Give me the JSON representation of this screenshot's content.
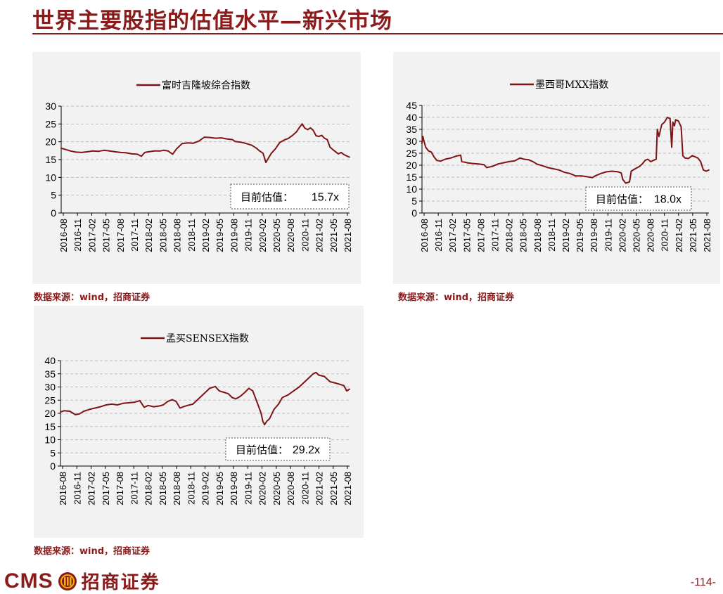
{
  "page": {
    "title": "世界主要股指的估值水平—新兴市场",
    "page_number": "-114-",
    "brand_en": "CMS",
    "brand_cn": "招商证券",
    "source_text": "数据来源：wind，招商证券"
  },
  "colors": {
    "brand": "#8b1a1a",
    "series": "#7f1416",
    "panel_bg": "#f2f2f2",
    "grid": "#bfbfbf"
  },
  "chart_data": [
    {
      "id": "ftse-malaysia",
      "type": "line",
      "legend": "富时吉隆坡综合指数",
      "annotation_label": "目前估值：",
      "annotation_value": "15.7x",
      "ylim": [
        0,
        30
      ],
      "yticks": [
        0,
        5,
        10,
        15,
        20,
        25,
        30
      ],
      "xlim": [
        2016.583,
        2021.75
      ],
      "xticks": [
        "2016-08",
        "2016-11",
        "2017-02",
        "2017-05",
        "2017-08",
        "2017-11",
        "2018-02",
        "2018-05",
        "2018-08",
        "2018-11",
        "2019-02",
        "2019-05",
        "2019-08",
        "2019-11",
        "2020-02",
        "2020-05",
        "2020-08",
        "2020-11",
        "2021-02",
        "2021-05",
        "2021-08"
      ],
      "series": [
        {
          "x": [
            2016.58,
            2016.65,
            2016.75,
            2016.85,
            2016.95,
            2017.05,
            2017.15,
            2017.25,
            2017.35,
            2017.45,
            2017.55,
            2017.65,
            2017.75,
            2017.85,
            2017.95,
            2018.02,
            2018.08,
            2018.15,
            2018.25,
            2018.35,
            2018.42,
            2018.5,
            2018.58,
            2018.65,
            2018.75,
            2018.85,
            2018.95,
            2019.05,
            2019.15,
            2019.25,
            2019.35,
            2019.45,
            2019.55,
            2019.6,
            2019.65,
            2019.7,
            2019.8,
            2019.9,
            2020.0,
            2020.08,
            2020.13,
            2020.2,
            2020.25,
            2020.3,
            2020.35,
            2020.42,
            2020.5,
            2020.58,
            2020.65,
            2020.72,
            2020.8,
            2020.85,
            2020.9,
            2020.95,
            2021.0,
            2021.05,
            2021.1,
            2021.15,
            2021.2,
            2021.25,
            2021.3,
            2021.35,
            2021.4,
            2021.45,
            2021.5,
            2021.55,
            2021.6,
            2021.65,
            2021.7,
            2021.75
          ],
          "y": [
            18.2,
            17.9,
            17.4,
            17.1,
            17.0,
            17.2,
            17.4,
            17.3,
            17.6,
            17.4,
            17.2,
            17.0,
            16.9,
            16.6,
            16.5,
            15.9,
            17.0,
            17.2,
            17.4,
            17.4,
            17.6,
            17.4,
            16.5,
            18.0,
            19.5,
            19.7,
            19.6,
            20.2,
            21.3,
            21.2,
            21.0,
            21.1,
            20.8,
            20.7,
            20.6,
            20.1,
            19.9,
            19.5,
            19.0,
            18.2,
            17.5,
            16.8,
            14.2,
            15.5,
            16.8,
            18.0,
            19.8,
            20.5,
            20.9,
            21.7,
            22.8,
            24.0,
            25.0,
            23.8,
            23.4,
            23.9,
            23.2,
            21.7,
            21.5,
            21.8,
            21.0,
            20.6,
            18.5,
            17.8,
            17.2,
            16.6,
            17.0,
            16.4,
            16.0,
            15.7
          ]
        }
      ]
    },
    {
      "id": "mexico-mxx",
      "type": "line",
      "legend": "墨西哥MXX指数",
      "annotation_label": "目前估值：",
      "annotation_value": "18.0x",
      "ylim": [
        0,
        45
      ],
      "yticks": [
        0,
        5,
        10,
        15,
        20,
        25,
        30,
        35,
        40,
        45
      ],
      "xlim": [
        2016.583,
        2021.75
      ],
      "xticks": [
        "2016-08",
        "2016-11",
        "2017-02",
        "2017-05",
        "2017-08",
        "2017-11",
        "2018-02",
        "2018-05",
        "2018-08",
        "2018-11",
        "2019-02",
        "2019-05",
        "2019-08",
        "2019-11",
        "2020-02",
        "2020-05",
        "2020-08",
        "2020-11",
        "2021-02",
        "2021-05",
        "2021-08"
      ],
      "series": [
        {
          "x": [
            2016.58,
            2016.6,
            2016.62,
            2016.65,
            2016.7,
            2016.75,
            2016.8,
            2016.85,
            2016.92,
            2017.0,
            2017.1,
            2017.2,
            2017.28,
            2017.3,
            2017.35,
            2017.4,
            2017.5,
            2017.6,
            2017.7,
            2017.75,
            2017.85,
            2017.95,
            2018.05,
            2018.15,
            2018.25,
            2018.35,
            2018.42,
            2018.5,
            2018.58,
            2018.65,
            2018.75,
            2018.85,
            2018.95,
            2019.05,
            2019.15,
            2019.25,
            2019.35,
            2019.45,
            2019.55,
            2019.6,
            2019.65,
            2019.7,
            2019.8,
            2019.9,
            2020.0,
            2020.1,
            2020.17,
            2020.2,
            2020.25,
            2020.32,
            2020.35,
            2020.42,
            2020.5,
            2020.55,
            2020.6,
            2020.65,
            2020.7,
            2020.75,
            2020.8,
            2020.82,
            2020.85,
            2020.9,
            2020.95,
            2021.0,
            2021.05,
            2021.08,
            2021.1,
            2021.13,
            2021.15,
            2021.2,
            2021.25,
            2021.28,
            2021.32,
            2021.38,
            2021.45,
            2021.5,
            2021.55,
            2021.6,
            2021.65,
            2021.7,
            2021.75
          ],
          "y": [
            29.0,
            32.0,
            30.0,
            27.5,
            26.0,
            25.5,
            23.5,
            22.0,
            21.7,
            22.5,
            23.0,
            23.8,
            24.2,
            21.5,
            21.3,
            21.0,
            20.7,
            20.5,
            20.2,
            19.0,
            19.5,
            20.5,
            21.0,
            21.5,
            21.8,
            23.0,
            22.5,
            22.3,
            21.5,
            20.5,
            19.8,
            19.0,
            18.5,
            18.0,
            17.0,
            16.5,
            15.5,
            15.5,
            15.2,
            15.0,
            14.8,
            15.5,
            16.5,
            17.2,
            17.5,
            17.3,
            16.8,
            14.0,
            12.5,
            13.0,
            17.5,
            18.5,
            19.5,
            20.5,
            22.0,
            22.5,
            21.5,
            22.0,
            22.5,
            35.0,
            32.0,
            37.0,
            38.0,
            40.0,
            39.5,
            27.5,
            38.0,
            36.5,
            39.0,
            38.5,
            36.0,
            24.0,
            23.0,
            22.8,
            24.0,
            23.5,
            23.0,
            21.5,
            18.0,
            17.5,
            18.0
          ]
        }
      ]
    },
    {
      "id": "bse-sensex",
      "type": "line",
      "legend": "孟买SENSEX指数",
      "annotation_label": "目前估值：",
      "annotation_value": "29.2x",
      "ylim": [
        0,
        40
      ],
      "yticks": [
        0,
        5,
        10,
        15,
        20,
        25,
        30,
        35,
        40
      ],
      "xlim": [
        2016.583,
        2021.75
      ],
      "xticks": [
        "2016-08",
        "2016-11",
        "2017-02",
        "2017-05",
        "2017-08",
        "2017-11",
        "2018-02",
        "2018-05",
        "2018-08",
        "2018-11",
        "2019-02",
        "2019-05",
        "2019-08",
        "2019-11",
        "2020-02",
        "2020-05",
        "2020-08",
        "2020-11",
        "2021-02",
        "2021-05",
        "2021-08"
      ],
      "series": [
        {
          "x": [
            2016.58,
            2016.65,
            2016.75,
            2016.85,
            2016.92,
            2017.0,
            2017.1,
            2017.2,
            2017.3,
            2017.4,
            2017.5,
            2017.6,
            2017.7,
            2017.8,
            2017.9,
            2018.0,
            2018.08,
            2018.15,
            2018.25,
            2018.35,
            2018.42,
            2018.5,
            2018.58,
            2018.65,
            2018.72,
            2018.78,
            2018.85,
            2018.95,
            2019.05,
            2019.15,
            2019.25,
            2019.35,
            2019.42,
            2019.5,
            2019.58,
            2019.65,
            2019.72,
            2019.8,
            2019.88,
            2019.95,
            2020.02,
            2020.1,
            2020.17,
            2020.2,
            2020.23,
            2020.27,
            2020.32,
            2020.4,
            2020.48,
            2020.55,
            2020.65,
            2020.75,
            2020.85,
            2020.95,
            2021.05,
            2021.1,
            2021.15,
            2021.2,
            2021.3,
            2021.4,
            2021.5,
            2021.58,
            2021.65,
            2021.7,
            2021.75
          ],
          "y": [
            20.5,
            21.0,
            20.8,
            19.5,
            19.8,
            20.8,
            21.5,
            22.0,
            22.5,
            23.2,
            23.5,
            23.2,
            23.8,
            24.0,
            24.2,
            24.8,
            22.3,
            23.0,
            22.5,
            22.8,
            23.2,
            24.5,
            25.2,
            24.5,
            22.0,
            22.5,
            23.0,
            23.5,
            25.5,
            27.5,
            29.5,
            30.2,
            28.5,
            28.0,
            27.5,
            26.0,
            25.5,
            26.5,
            28.0,
            29.5,
            28.5,
            24.0,
            20.0,
            17.0,
            15.7,
            17.0,
            18.0,
            21.5,
            23.5,
            26.0,
            27.0,
            28.5,
            30.0,
            32.0,
            34.0,
            35.0,
            35.5,
            34.5,
            34.0,
            32.0,
            31.5,
            31.0,
            30.5,
            28.5,
            29.2
          ]
        }
      ]
    }
  ]
}
